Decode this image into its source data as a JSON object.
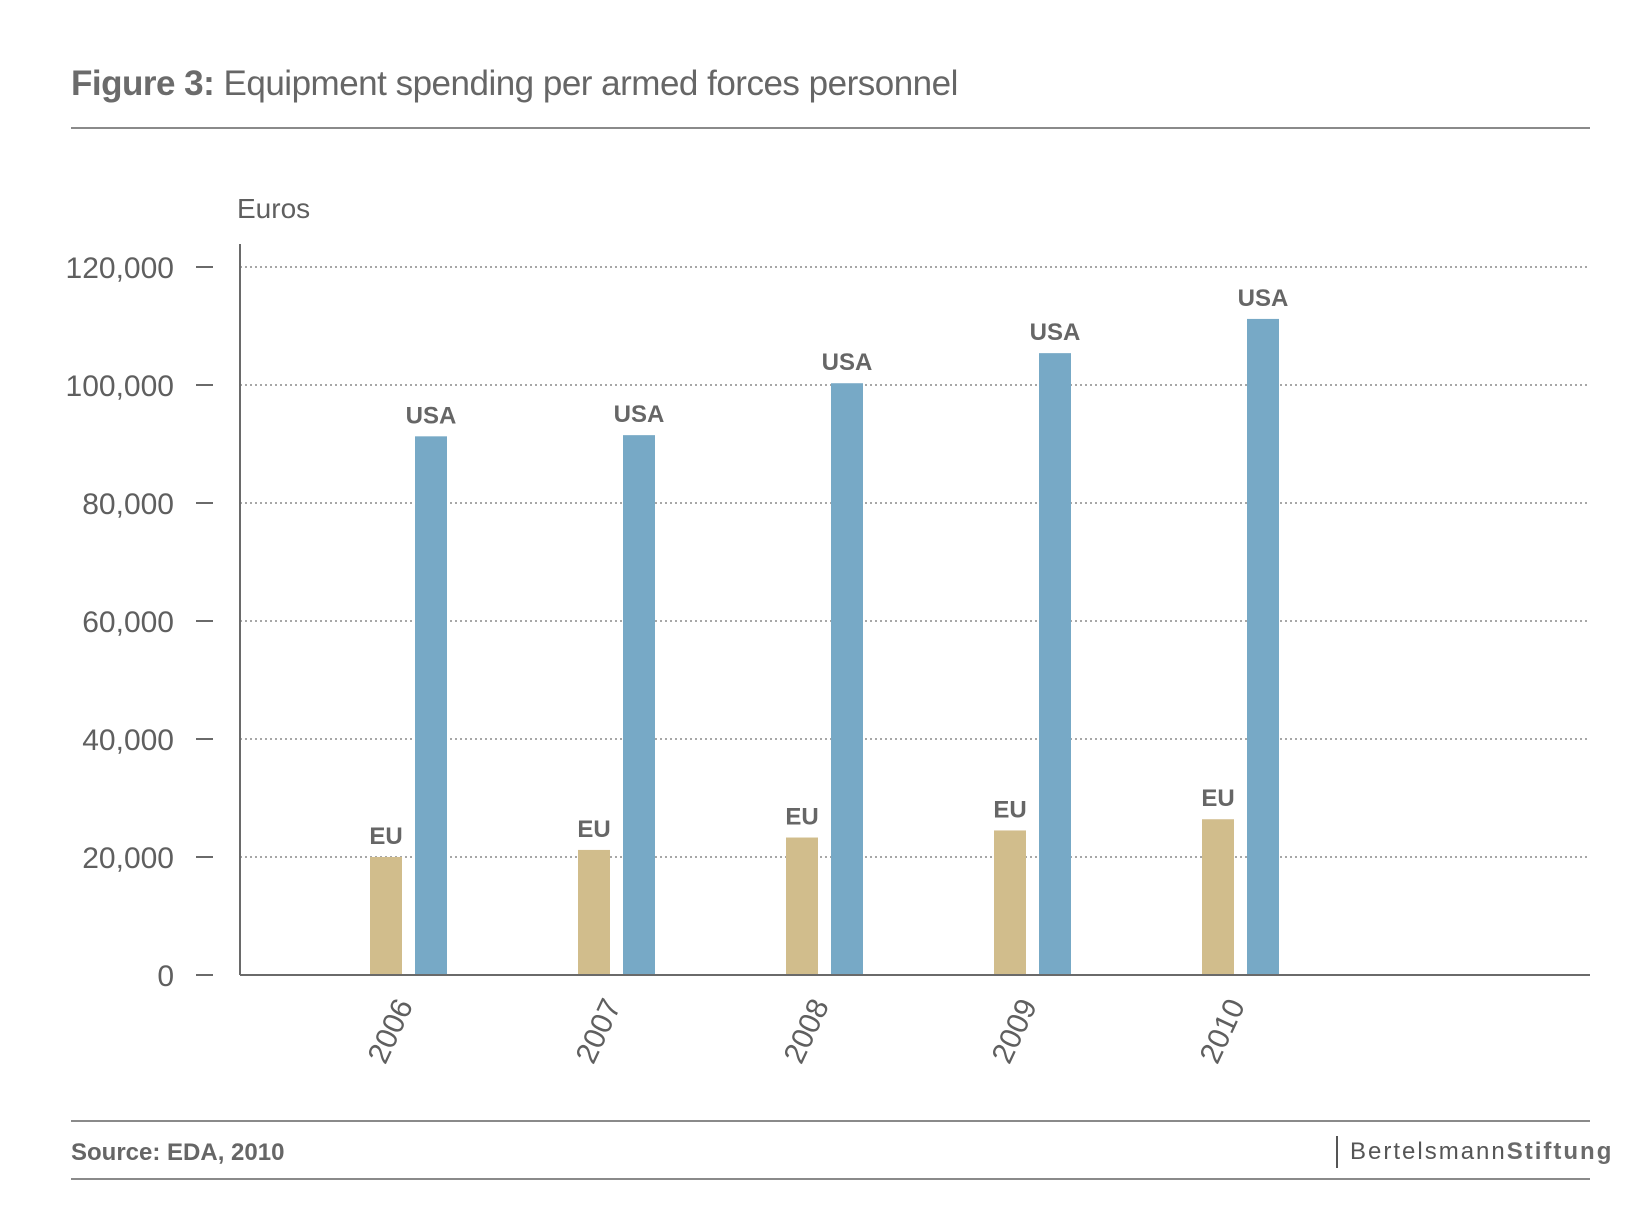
{
  "header": {
    "title_prefix": "Figure 3:",
    "title_text": "Equipment spending per armed forces personnel"
  },
  "footer": {
    "source": "Source: EDA, 2010",
    "brand_light": "Bertelsmann",
    "brand_bold": "Stiftung"
  },
  "colors": {
    "eu": "#d1bd8c",
    "usa": "#77a9c6",
    "grid": "#8a8a8a",
    "axis": "#6a6a6a"
  },
  "chart_data": {
    "type": "bar",
    "title": "Equipment spending per armed forces personnel",
    "ylabel": "Euros",
    "xlabel": "",
    "ylim": [
      0,
      120000
    ],
    "yticks": [
      0,
      20000,
      40000,
      60000,
      80000,
      100000,
      120000
    ],
    "ytick_labels": [
      "0",
      "20,000",
      "40,000",
      "60,000",
      "80,000",
      "100,000",
      "120,000"
    ],
    "grid": true,
    "categories": [
      "2006",
      "2007",
      "2008",
      "2009",
      "2010"
    ],
    "series": [
      {
        "name": "EU",
        "values": [
          20000,
          21200,
          23300,
          24500,
          26400
        ]
      },
      {
        "name": "USA",
        "values": [
          91300,
          91500,
          100300,
          105400,
          111200
        ]
      }
    ]
  }
}
